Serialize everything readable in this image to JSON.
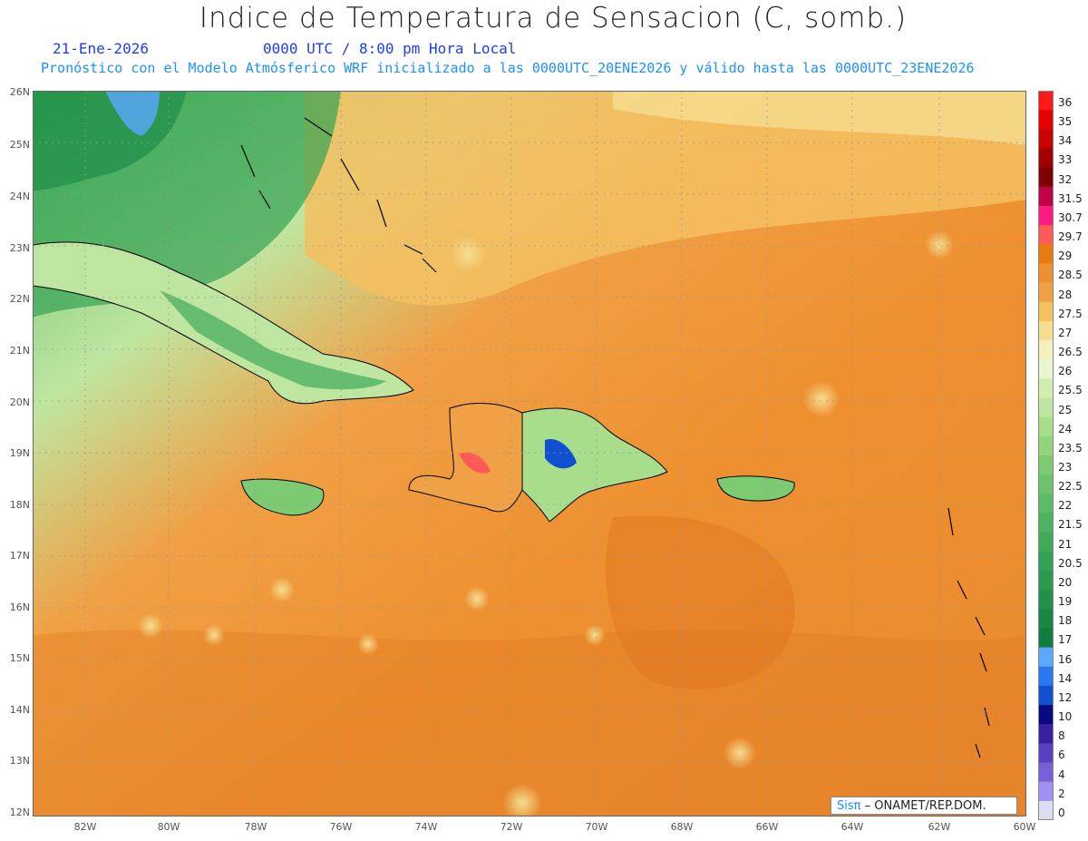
{
  "title": "Indice de Temperatura de Sensacion (C, somb.)",
  "date": "21-Ene-2026",
  "time": "0000 UTC / 8:00 pm Hora Local",
  "subtitle": "Pronóstico con el Modelo Atmósferico WRF inicializado a las 0000UTC_20ENE2026 y válido hasta las  0000UTC_23ENE2026",
  "credit": {
    "brand": "Sisπ",
    "text": " – ONAMET/REP.DOM."
  },
  "lat_labels": [
    "26N",
    "25N",
    "24N",
    "23N",
    "22N",
    "21N",
    "20N",
    "19N",
    "18N",
    "17N",
    "16N",
    "15N",
    "14N",
    "13N",
    "12N"
  ],
  "lon_labels": [
    "82W",
    "80W",
    "78W",
    "76W",
    "74W",
    "72W",
    "70W",
    "68W",
    "66W",
    "64W",
    "62W",
    "60W"
  ],
  "legend": {
    "labels": [
      "36",
      "35",
      "34",
      "33",
      "32",
      "31.5",
      "30.7",
      "29.7",
      "29",
      "28.5",
      "28",
      "27.5",
      "27",
      "26.5",
      "26",
      "25.5",
      "25",
      "24",
      "23.5",
      "23",
      "22.5",
      "22",
      "21.5",
      "21",
      "20.5",
      "20",
      "19",
      "18",
      "17",
      "16",
      "14",
      "12",
      "10",
      "8",
      "6",
      "4",
      "2",
      "0"
    ],
    "colors": [
      "#ff1a1a",
      "#e60000",
      "#c80000",
      "#a00000",
      "#800000",
      "#c0004a",
      "#ff1a80",
      "#ff5a5a",
      "#e87a10",
      "#ee9030",
      "#f0a045",
      "#f5c060",
      "#f5dd90",
      "#f5f0c0",
      "#e8f5d0",
      "#d0eeb0",
      "#bfe6a0",
      "#a8dd8c",
      "#90d47c",
      "#7ccb72",
      "#6cc36c",
      "#5cbb66",
      "#4eb360",
      "#40aa5a",
      "#34a254",
      "#2a9a4e",
      "#1f914a",
      "#188744",
      "#0f7d3e",
      "#5aa8ff",
      "#2a78f0",
      "#1050d0",
      "#0a0a80",
      "#3820a0",
      "#5a40c0",
      "#7a60d8",
      "#a090f0",
      "#dcdcf5"
    ]
  },
  "colors": {
    "ocean_warm": "#ee9030",
    "land_cool": "#30a050",
    "title": "#222222",
    "date": "#1e3cff",
    "subtitle": "#1e90ff"
  }
}
